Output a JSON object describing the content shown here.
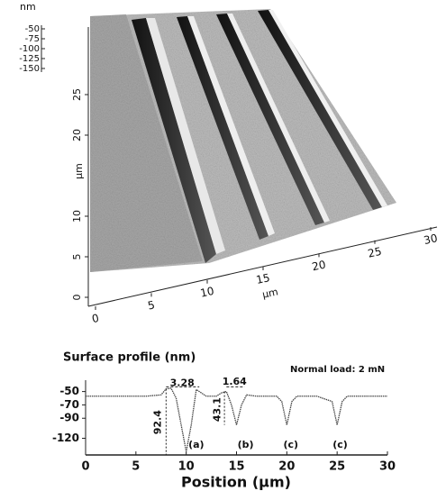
{
  "chart_data": [
    {
      "type": "surface",
      "zlabel": "nm",
      "ylabel": "µm",
      "xlabel": "µm",
      "zticks": [
        -50,
        -75,
        -100,
        -125,
        -150
      ],
      "yticks": [
        0,
        5,
        10,
        20,
        25
      ],
      "xticks": [
        0,
        5,
        10,
        15,
        20,
        25,
        30
      ]
    },
    {
      "type": "line",
      "title": "Surface profile (nm)",
      "note": "Normal load: 2 mN",
      "xlabel": "Position (μm)",
      "x": [
        0,
        2,
        4,
        6,
        7.5,
        8,
        8.5,
        9,
        9.5,
        10,
        10.5,
        11,
        11.5,
        12,
        13,
        13.5,
        14,
        14.5,
        15,
        15.5,
        16,
        17,
        19,
        19.5,
        20,
        20.5,
        21,
        23,
        24.5,
        25,
        25.5,
        26,
        28,
        30
      ],
      "values": [
        -57,
        -57,
        -57,
        -57,
        -55,
        -46,
        -45,
        -60,
        -100,
        -140,
        -100,
        -47,
        -52,
        -57,
        -57,
        -52,
        -50,
        -70,
        -100,
        -70,
        -55,
        -57,
        -57,
        -65,
        -100,
        -65,
        -57,
        -57,
        -65,
        -100,
        -65,
        -57,
        -57,
        -57
      ],
      "color": "#444",
      "xlim": [
        0,
        30
      ],
      "xticks": [
        0,
        5,
        10,
        15,
        20,
        25,
        30
      ],
      "ylim": [
        -145,
        -33
      ],
      "yticks": [
        -50,
        -70,
        -90,
        -120
      ],
      "annotations": [
        "3.28",
        "1.64",
        "92.4",
        "43.1",
        "(a)",
        "(b)",
        "(c)",
        "(c)"
      ]
    }
  ]
}
